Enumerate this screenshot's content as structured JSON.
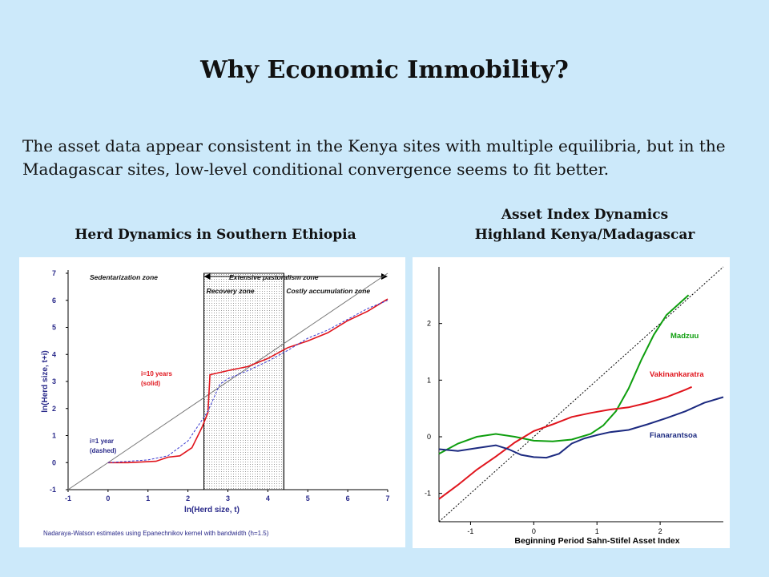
{
  "slide": {
    "title": "Why Economic Immobility?",
    "body": "The asset data appear consistent in the Kenya sites with multiple equilibria, but in the Madagascar sites, low-level conditional convergence seems to fit better.",
    "caption_left": "Herd Dynamics in Southern Ethiopia",
    "caption_right_line1": "Asset Index Dynamics",
    "caption_right_line2": "Highland Kenya/Madagascar"
  },
  "colors": {
    "background": "#cce9fa",
    "red": "#e0141c",
    "blue": "#3a3ad0",
    "green": "#0e9e0e",
    "navy": "#1c2a80"
  },
  "chart_data": [
    {
      "type": "line",
      "xlabel": "ln(Herd size, t)",
      "ylabel": "ln(Herd size, t+i)",
      "xlim": [
        -1,
        7
      ],
      "ylim": [
        -1,
        7
      ],
      "xticks": [
        "-1",
        "0",
        "1",
        "2",
        "3",
        "4",
        "5",
        "6",
        "7"
      ],
      "yticks": [
        "-1",
        "0",
        "1",
        "2",
        "3",
        "4",
        "5",
        "6",
        "7"
      ],
      "note": "Nadaraya-Watson estimates using Epanechnikov kernel with bandwidth (h=1.5)",
      "zones": {
        "sedentarization": "Sedentarization zone",
        "extensive": "Extensive pastoralism zone",
        "recovery": "Recovery zone",
        "costly": "Costly accumulation zone"
      },
      "zone_bounds": {
        "recovery": [
          2.4,
          4.4
        ]
      },
      "labels": {
        "solid": "i=10 years",
        "solid_sub": "(solid)",
        "dashed": "i=1 year",
        "dashed_sub": "(dashed)"
      },
      "series": [
        {
          "style": "45-degree",
          "color": "#777777",
          "points": [
            [
              -1,
              -1
            ],
            [
              7,
              7
            ]
          ]
        },
        {
          "style": "solid",
          "color": "#e0141c",
          "points": [
            [
              0,
              0
            ],
            [
              0.5,
              0
            ],
            [
              1.2,
              0.05
            ],
            [
              1.5,
              0.2
            ],
            [
              1.8,
              0.25
            ],
            [
              2.1,
              0.55
            ],
            [
              2.35,
              1.3
            ],
            [
              2.5,
              1.85
            ],
            [
              2.55,
              3.25
            ],
            [
              3.0,
              3.4
            ],
            [
              3.5,
              3.55
            ],
            [
              4.0,
              3.85
            ],
            [
              4.5,
              4.25
            ],
            [
              4.8,
              4.4
            ],
            [
              5.0,
              4.5
            ],
            [
              5.5,
              4.8
            ],
            [
              6.0,
              5.25
            ],
            [
              6.5,
              5.6
            ],
            [
              7,
              6.05
            ]
          ]
        },
        {
          "style": "dashed",
          "color": "#3a3ad0",
          "points": [
            [
              0,
              0
            ],
            [
              0.5,
              0.05
            ],
            [
              1.0,
              0.1
            ],
            [
              1.5,
              0.25
            ],
            [
              2.0,
              0.8
            ],
            [
              2.5,
              1.9
            ],
            [
              2.8,
              2.9
            ],
            [
              3.0,
              3.1
            ],
            [
              3.5,
              3.4
            ],
            [
              4.0,
              3.75
            ],
            [
              4.5,
              4.15
            ],
            [
              5.0,
              4.6
            ],
            [
              5.5,
              4.9
            ],
            [
              6.0,
              5.3
            ],
            [
              6.5,
              5.7
            ],
            [
              7,
              6.0
            ]
          ]
        }
      ]
    },
    {
      "type": "line",
      "xlabel": "Beginning Period Sahn-Stifel Asset Index",
      "ylabel": "",
      "xlim": [
        -1.5,
        3.0
      ],
      "ylim": [
        -1.5,
        3.0
      ],
      "xticks": [
        "-1",
        "0",
        "1",
        "2"
      ],
      "yticks": [
        "-1",
        "0",
        "1",
        "2"
      ],
      "series": [
        {
          "name": "",
          "style": "45-degree",
          "color": "#000000",
          "points": [
            [
              -1.5,
              -1.5
            ],
            [
              3.0,
              3.0
            ]
          ]
        },
        {
          "name": "Madzuu",
          "color": "#0e9e0e",
          "points": [
            [
              -1.5,
              -0.3
            ],
            [
              -1.2,
              -0.12
            ],
            [
              -0.9,
              0.0
            ],
            [
              -0.6,
              0.05
            ],
            [
              -0.3,
              0.0
            ],
            [
              0,
              -0.07
            ],
            [
              0.3,
              -0.08
            ],
            [
              0.6,
              -0.05
            ],
            [
              0.9,
              0.05
            ],
            [
              1.1,
              0.2
            ],
            [
              1.3,
              0.45
            ],
            [
              1.5,
              0.85
            ],
            [
              1.7,
              1.35
            ],
            [
              1.9,
              1.8
            ],
            [
              2.1,
              2.15
            ],
            [
              2.3,
              2.35
            ],
            [
              2.45,
              2.5
            ]
          ]
        },
        {
          "name": "Vakinankaratra",
          "color": "#e0141c",
          "points": [
            [
              -1.5,
              -1.1
            ],
            [
              -1.2,
              -0.85
            ],
            [
              -0.9,
              -0.58
            ],
            [
              -0.6,
              -0.35
            ],
            [
              -0.3,
              -0.1
            ],
            [
              0,
              0.1
            ],
            [
              0.3,
              0.22
            ],
            [
              0.6,
              0.35
            ],
            [
              0.9,
              0.42
            ],
            [
              1.2,
              0.48
            ],
            [
              1.5,
              0.52
            ],
            [
              1.8,
              0.6
            ],
            [
              2.1,
              0.7
            ],
            [
              2.4,
              0.83
            ],
            [
              2.5,
              0.88
            ]
          ]
        },
        {
          "name": "Fianarantsoa",
          "color": "#1c2a80",
          "points": [
            [
              -1.5,
              -0.22
            ],
            [
              -1.2,
              -0.25
            ],
            [
              -0.9,
              -0.2
            ],
            [
              -0.6,
              -0.15
            ],
            [
              -0.4,
              -0.22
            ],
            [
              -0.2,
              -0.32
            ],
            [
              0,
              -0.36
            ],
            [
              0.2,
              -0.37
            ],
            [
              0.4,
              -0.3
            ],
            [
              0.6,
              -0.12
            ],
            [
              0.8,
              -0.03
            ],
            [
              1.0,
              0.03
            ],
            [
              1.2,
              0.08
            ],
            [
              1.5,
              0.12
            ],
            [
              1.8,
              0.22
            ],
            [
              2.1,
              0.33
            ],
            [
              2.4,
              0.45
            ],
            [
              2.7,
              0.6
            ],
            [
              3.0,
              0.7
            ]
          ]
        }
      ]
    }
  ]
}
